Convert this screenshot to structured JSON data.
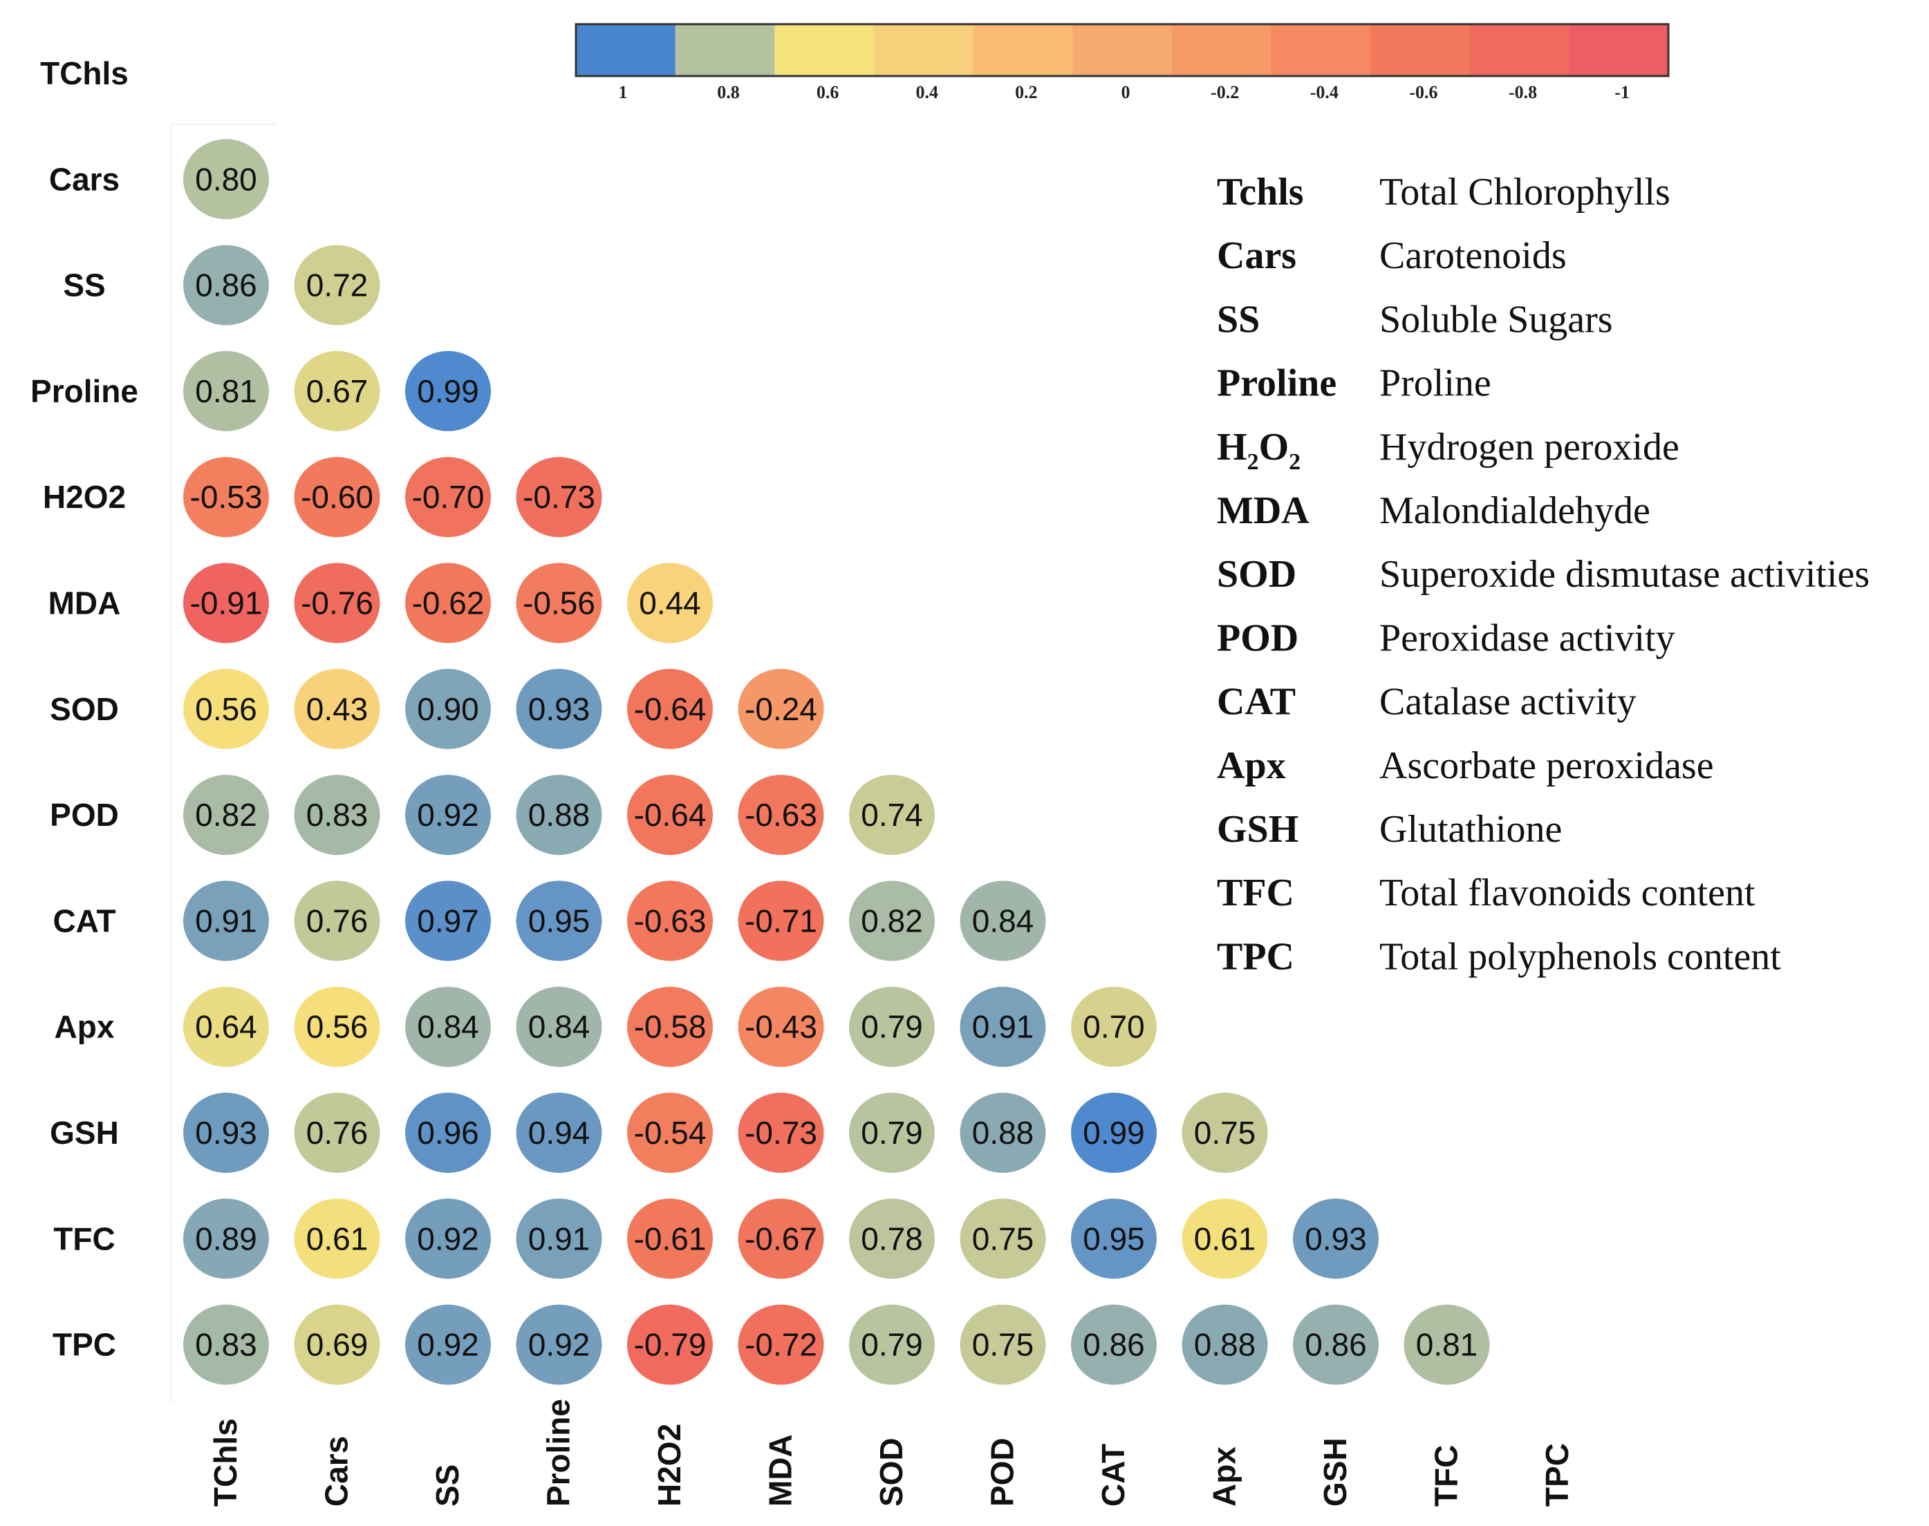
{
  "chart_data": {
    "type": "heatmap",
    "title": "",
    "variables": [
      "TChls",
      "Cars",
      "SS",
      "Proline",
      "H2O2",
      "MDA",
      "SOD",
      "POD",
      "CAT",
      "Apx",
      "GSH",
      "TFC",
      "TPC"
    ],
    "row_labels": [
      "TChls",
      "Cars",
      "SS",
      "Proline",
      "H2O2",
      "MDA",
      "SOD",
      "POD",
      "CAT",
      "Apx",
      "GSH",
      "TFC",
      "TPC"
    ],
    "col_labels": [
      "TChls",
      "Cars",
      "SS",
      "Proline",
      "H2O2",
      "MDA",
      "SOD",
      "POD",
      "CAT",
      "Apx",
      "GSH",
      "TFC",
      "TPC"
    ],
    "matrix": [
      [],
      [
        "0.80"
      ],
      [
        "0.86",
        "0.72"
      ],
      [
        "0.81",
        "0.67",
        "0.99"
      ],
      [
        "-0.53",
        "-0.60",
        "-0.70",
        "-0.73"
      ],
      [
        "-0.91",
        "-0.76",
        "-0.62",
        "-0.56",
        "0.44"
      ],
      [
        "0.56",
        "0.43",
        "0.90",
        "0.93",
        "-0.64",
        "-0.24"
      ],
      [
        "0.82",
        "0.83",
        "0.92",
        "0.88",
        "-0.64",
        "-0.63",
        "0.74"
      ],
      [
        "0.91",
        "0.76",
        "0.97",
        "0.95",
        "-0.63",
        "-0.71",
        "0.82",
        "0.84"
      ],
      [
        "0.64",
        "0.56",
        "0.84",
        "0.84",
        "-0.58",
        "-0.43",
        "0.79",
        "0.91",
        "0.70"
      ],
      [
        "0.93",
        "0.76",
        "0.96",
        "0.94",
        "-0.54",
        "-0.73",
        "0.79",
        "0.88",
        "0.99",
        "0.75"
      ],
      [
        "0.89",
        "0.61",
        "0.92",
        "0.91",
        "-0.61",
        "-0.67",
        "0.78",
        "0.75",
        "0.95",
        "0.61",
        "0.93"
      ],
      [
        "0.83",
        "0.69",
        "0.92",
        "0.92",
        "-0.79",
        "-0.72",
        "0.79",
        "0.75",
        "0.86",
        "0.88",
        "0.86",
        "0.81"
      ]
    ],
    "colorbar": {
      "ticks": [
        "1",
        "0.8",
        "0.6",
        "0.4",
        "0.2",
        "0",
        "-0.2",
        "-0.4",
        "-0.6",
        "-0.8",
        "-1"
      ],
      "colors": [
        "#4a86d0",
        "#b5c2a0",
        "#f6e27a",
        "#f8cf7a",
        "#f8bc74",
        "#f7aa6e",
        "#f69a68",
        "#f48962",
        "#f2795c",
        "#f06a5e",
        "#ee5d63"
      ]
    },
    "legend": [
      {
        "abbr": "Tchls",
        "full": "Total Chlorophylls"
      },
      {
        "abbr": "Cars",
        "full": "Carotenoids"
      },
      {
        "abbr": "SS",
        "full": "Soluble  Sugars"
      },
      {
        "abbr": "Proline",
        "full": "Proline"
      },
      {
        "abbr": "H2O2",
        "full": "Hydrogen peroxide"
      },
      {
        "abbr": "MDA",
        "full": "Malondialdehyde"
      },
      {
        "abbr": "SOD",
        "full": "Superoxide  dismutase activities"
      },
      {
        "abbr": "POD",
        "full": "Peroxidase activity"
      },
      {
        "abbr": "CAT",
        "full": "Catalase activity"
      },
      {
        "abbr": "Apx",
        "full": "Ascorbate peroxidase"
      },
      {
        "abbr": "GSH",
        "full": "Glutathione"
      },
      {
        "abbr": "TFC",
        "full": "Total flavonoids  content"
      },
      {
        "abbr": "TPC",
        "full": "Total polyphenols  content"
      }
    ],
    "legend_placement": "top-right",
    "grid": false
  }
}
